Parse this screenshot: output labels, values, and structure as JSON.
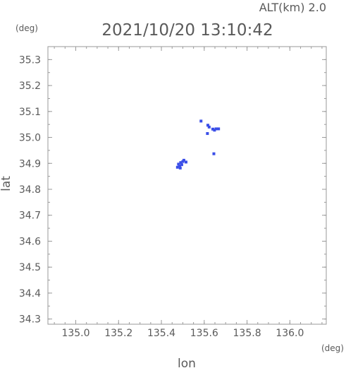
{
  "chart_data": {
    "type": "scatter",
    "title": "2021/10/20 13:10:42",
    "subtitle": "ALT(km) 2.0",
    "xlabel": "lon",
    "ylabel": "lat",
    "x_unit": "(deg)",
    "y_unit": "(deg)",
    "xlim": [
      134.87,
      136.17
    ],
    "ylim": [
      34.28,
      35.35
    ],
    "xticks": [
      "135.0",
      "135.2",
      "135.4",
      "135.6",
      "135.8",
      "136.0"
    ],
    "yticks": [
      "34.3",
      "34.4",
      "34.5",
      "34.6",
      "34.7",
      "34.8",
      "34.9",
      "35.0",
      "35.1",
      "35.2",
      "35.3"
    ],
    "grid": false,
    "point_color": "#3a4ee8",
    "points": [
      {
        "x": 135.48,
        "y": 34.897
      },
      {
        "x": 135.49,
        "y": 34.903
      },
      {
        "x": 135.5,
        "y": 34.907
      },
      {
        "x": 135.485,
        "y": 34.89
      },
      {
        "x": 135.495,
        "y": 34.895
      },
      {
        "x": 135.505,
        "y": 34.912
      },
      {
        "x": 135.475,
        "y": 34.885
      },
      {
        "x": 135.488,
        "y": 34.882
      },
      {
        "x": 135.515,
        "y": 34.905
      },
      {
        "x": 135.585,
        "y": 35.063
      },
      {
        "x": 135.617,
        "y": 35.047
      },
      {
        "x": 135.623,
        "y": 35.04
      },
      {
        "x": 135.64,
        "y": 35.032
      },
      {
        "x": 135.648,
        "y": 35.028
      },
      {
        "x": 135.655,
        "y": 35.033
      },
      {
        "x": 135.667,
        "y": 35.033
      },
      {
        "x": 135.615,
        "y": 35.015
      },
      {
        "x": 135.645,
        "y": 34.937
      }
    ]
  }
}
